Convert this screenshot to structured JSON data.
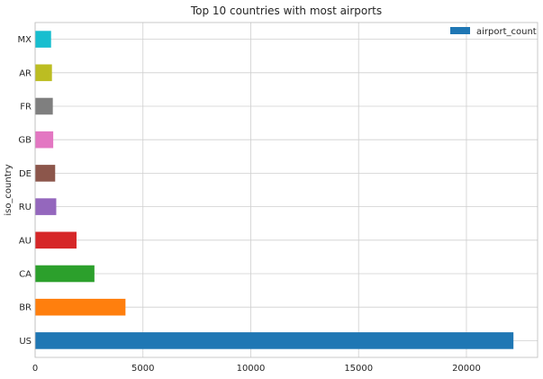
{
  "chart_data": {
    "type": "bar",
    "orientation": "horizontal",
    "title": "Top 10 countries with most airports",
    "xlabel": "",
    "ylabel": "iso_country",
    "categories": [
      "US",
      "BR",
      "CA",
      "AU",
      "RU",
      "DE",
      "GB",
      "FR",
      "AR",
      "MX"
    ],
    "series": [
      {
        "name": "airport_count",
        "values": [
          22180,
          4190,
          2750,
          1920,
          980,
          930,
          840,
          820,
          780,
          740
        ]
      }
    ],
    "bar_colors": [
      "#1f77b4",
      "#ff7f0e",
      "#2ca02c",
      "#d62728",
      "#9467bd",
      "#8c564b",
      "#e377c2",
      "#7f7f7f",
      "#bcbd22",
      "#17becf"
    ],
    "legend_color": "#1f77b4",
    "xlim": [
      0,
      23300
    ],
    "xticks": [
      0,
      5000,
      10000,
      15000,
      20000
    ],
    "xtick_labels": [
      "0",
      "5000",
      "10000",
      "15000",
      "20000"
    ],
    "grid": true,
    "legend_position": "top-right"
  }
}
